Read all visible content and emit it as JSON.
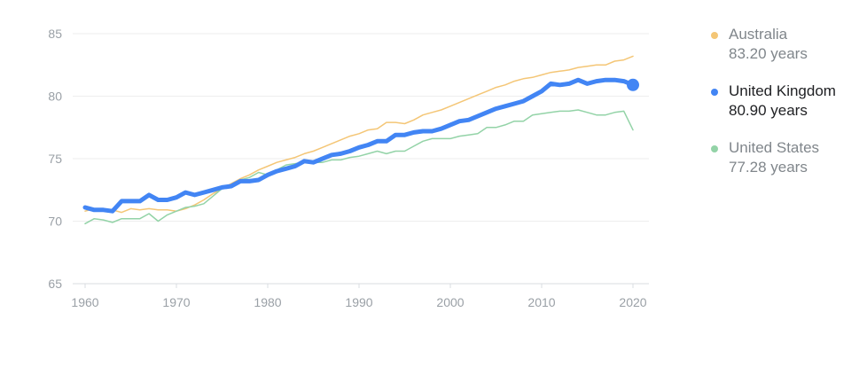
{
  "chart_data": {
    "type": "line",
    "title": "",
    "xlabel": "",
    "ylabel": "",
    "xlim": [
      1960,
      2020
    ],
    "ylim": [
      65,
      85
    ],
    "y_ticks": [
      "65",
      "70",
      "75",
      "80",
      "85"
    ],
    "x_ticks": [
      "1960",
      "1970",
      "1980",
      "1990",
      "2000",
      "2010",
      "2020"
    ],
    "grid": true,
    "legend_position": "right",
    "x": [
      1960,
      1961,
      1962,
      1963,
      1964,
      1965,
      1966,
      1967,
      1968,
      1969,
      1970,
      1971,
      1972,
      1973,
      1974,
      1975,
      1976,
      1977,
      1978,
      1979,
      1980,
      1981,
      1982,
      1983,
      1984,
      1985,
      1986,
      1987,
      1988,
      1989,
      1990,
      1991,
      1992,
      1993,
      1994,
      1995,
      1996,
      1997,
      1998,
      1999,
      2000,
      2001,
      2002,
      2003,
      2004,
      2005,
      2006,
      2007,
      2008,
      2009,
      2010,
      2011,
      2012,
      2013,
      2014,
      2015,
      2016,
      2017,
      2018,
      2019,
      2020
    ],
    "series": [
      {
        "name": "Australia",
        "value_label": "83.20 years",
        "color": "#f4c676",
        "highlight": false,
        "values": [
          70.8,
          71.0,
          70.9,
          70.9,
          70.7,
          71.0,
          70.9,
          71.0,
          70.9,
          70.9,
          70.8,
          71.0,
          71.3,
          71.7,
          72.2,
          72.6,
          73.0,
          73.4,
          73.7,
          74.1,
          74.4,
          74.7,
          74.9,
          75.1,
          75.4,
          75.6,
          75.9,
          76.2,
          76.5,
          76.8,
          77.0,
          77.3,
          77.4,
          77.9,
          77.9,
          77.8,
          78.1,
          78.5,
          78.7,
          78.9,
          79.2,
          79.5,
          79.8,
          80.1,
          80.4,
          80.7,
          80.9,
          81.2,
          81.4,
          81.5,
          81.7,
          81.9,
          82.0,
          82.1,
          82.3,
          82.4,
          82.5,
          82.5,
          82.8,
          82.9,
          83.2
        ]
      },
      {
        "name": "United Kingdom",
        "value_label": "80.90 years",
        "color": "#4285f4",
        "highlight": true,
        "values": [
          71.1,
          70.9,
          70.9,
          70.8,
          71.6,
          71.6,
          71.6,
          72.1,
          71.7,
          71.7,
          71.9,
          72.3,
          72.1,
          72.3,
          72.5,
          72.7,
          72.8,
          73.2,
          73.2,
          73.3,
          73.7,
          74.0,
          74.2,
          74.4,
          74.8,
          74.7,
          75.0,
          75.3,
          75.4,
          75.6,
          75.9,
          76.1,
          76.4,
          76.4,
          76.9,
          76.9,
          77.1,
          77.2,
          77.2,
          77.4,
          77.7,
          78.0,
          78.1,
          78.4,
          78.7,
          79.0,
          79.2,
          79.4,
          79.6,
          80.0,
          80.4,
          81.0,
          80.9,
          81.0,
          81.3,
          81.0,
          81.2,
          81.3,
          81.3,
          81.2,
          80.9
        ]
      },
      {
        "name": "United States",
        "value_label": "77.28 years",
        "color": "#93d3a7",
        "highlight": false,
        "values": [
          69.8,
          70.2,
          70.1,
          69.9,
          70.2,
          70.2,
          70.2,
          70.6,
          70.0,
          70.5,
          70.8,
          71.1,
          71.2,
          71.4,
          72.0,
          72.6,
          72.9,
          73.3,
          73.5,
          73.9,
          73.7,
          74.1,
          74.5,
          74.6,
          74.7,
          74.7,
          74.7,
          74.9,
          74.9,
          75.1,
          75.2,
          75.4,
          75.6,
          75.4,
          75.6,
          75.6,
          76.0,
          76.4,
          76.6,
          76.6,
          76.6,
          76.8,
          76.9,
          77.0,
          77.5,
          77.5,
          77.7,
          78.0,
          78.0,
          78.5,
          78.6,
          78.7,
          78.8,
          78.8,
          78.9,
          78.7,
          78.5,
          78.5,
          78.7,
          78.8,
          77.3
        ]
      }
    ]
  }
}
